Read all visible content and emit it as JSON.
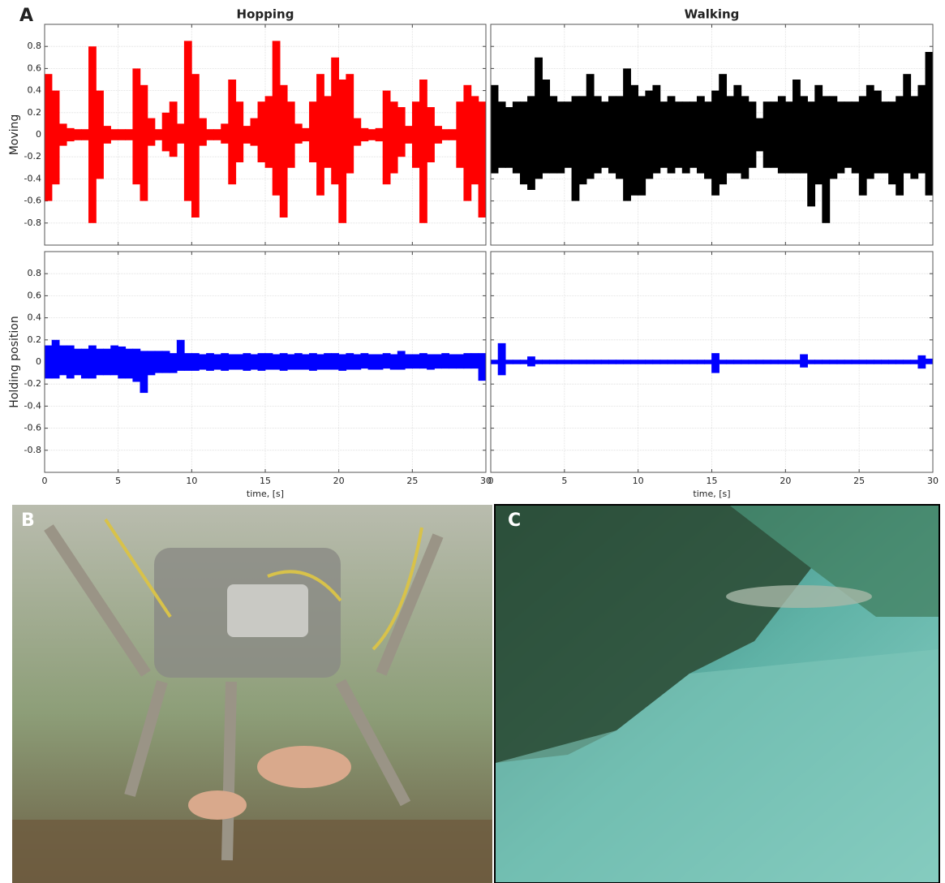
{
  "figure_labels": [
    "A",
    "B",
    "C"
  ],
  "chart_data": [
    {
      "type": "band",
      "title": "Hopping",
      "ylabel": "Moving",
      "x": [
        0.25,
        0.75,
        1.25,
        1.75,
        2.25,
        2.75,
        3.25,
        3.75,
        4.25,
        4.75,
        5.25,
        5.75,
        6.25,
        6.75,
        7.25,
        7.75,
        8.25,
        8.75,
        9.25,
        9.75,
        10.25,
        10.75,
        11.25,
        11.75,
        12.25,
        12.75,
        13.25,
        13.75,
        14.25,
        14.75,
        15.25,
        15.75,
        16.25,
        16.75,
        17.25,
        17.75,
        18.25,
        18.75,
        19.25,
        19.75,
        20.25,
        20.75,
        21.25,
        21.75,
        22.25,
        22.75,
        23.25,
        23.75,
        24.25,
        24.75,
        25.25,
        25.75,
        26.25,
        26.75,
        27.25,
        27.75,
        28.25,
        28.75,
        29.25,
        29.75
      ],
      "series": [
        {
          "color": "#ff0000",
          "values": [
            0.55,
            0.4,
            0.1,
            0.06,
            0.05,
            0.05,
            0.8,
            0.4,
            0.08,
            0.05,
            0.05,
            0.05,
            0.6,
            0.45,
            0.15,
            0.05,
            0.2,
            0.3,
            0.1,
            0.85,
            0.55,
            0.15,
            0.05,
            0.05,
            0.1,
            0.5,
            0.3,
            0.08,
            0.15,
            0.3,
            0.35,
            0.85,
            0.45,
            0.3,
            0.1,
            0.06,
            0.3,
            0.55,
            0.35,
            0.7,
            0.5,
            0.55,
            0.15,
            0.06,
            0.05,
            0.06,
            0.4,
            0.3,
            0.25,
            0.08,
            0.3,
            0.5,
            0.25,
            0.08,
            0.05,
            0.05,
            0.3,
            0.45,
            0.35,
            0.3
          ]
        },
        {
          "color": "#ff0000",
          "values": [
            -0.6,
            -0.45,
            -0.1,
            -0.06,
            -0.05,
            -0.05,
            -0.8,
            -0.4,
            -0.08,
            -0.05,
            -0.05,
            -0.05,
            -0.45,
            -0.6,
            -0.1,
            -0.05,
            -0.15,
            -0.2,
            -0.08,
            -0.6,
            -0.75,
            -0.1,
            -0.05,
            -0.05,
            -0.08,
            -0.45,
            -0.25,
            -0.08,
            -0.1,
            -0.25,
            -0.3,
            -0.55,
            -0.75,
            -0.3,
            -0.08,
            -0.06,
            -0.25,
            -0.55,
            -0.3,
            -0.45,
            -0.8,
            -0.35,
            -0.1,
            -0.06,
            -0.05,
            -0.06,
            -0.45,
            -0.35,
            -0.2,
            -0.08,
            -0.3,
            -0.8,
            -0.25,
            -0.08,
            -0.05,
            -0.05,
            -0.3,
            -0.6,
            -0.45,
            -0.75
          ]
        }
      ],
      "xlim": [
        0,
        30
      ],
      "xticks": [
        0,
        5,
        10,
        15,
        20,
        25,
        30
      ],
      "ylim": [
        -1,
        1
      ],
      "yticks": [
        -0.8,
        -0.6,
        -0.4,
        -0.2,
        0,
        0.2,
        0.4,
        0.6,
        0.8
      ],
      "grid": true,
      "show_xtick_labels": false,
      "show_ytick_labels": true
    },
    {
      "type": "band",
      "title": "Walking",
      "x": [
        0.25,
        0.75,
        1.25,
        1.75,
        2.25,
        2.75,
        3.25,
        3.75,
        4.25,
        4.75,
        5.25,
        5.75,
        6.25,
        6.75,
        7.25,
        7.75,
        8.25,
        8.75,
        9.25,
        9.75,
        10.25,
        10.75,
        11.25,
        11.75,
        12.25,
        12.75,
        13.25,
        13.75,
        14.25,
        14.75,
        15.25,
        15.75,
        16.25,
        16.75,
        17.25,
        17.75,
        18.25,
        18.75,
        19.25,
        19.75,
        20.25,
        20.75,
        21.25,
        21.75,
        22.25,
        22.75,
        23.25,
        23.75,
        24.25,
        24.75,
        25.25,
        25.75,
        26.25,
        26.75,
        27.25,
        27.75,
        28.25,
        28.75,
        29.25,
        29.75
      ],
      "series": [
        {
          "color": "#000000",
          "values": [
            0.45,
            0.3,
            0.25,
            0.3,
            0.3,
            0.35,
            0.7,
            0.5,
            0.35,
            0.3,
            0.3,
            0.35,
            0.35,
            0.55,
            0.35,
            0.3,
            0.35,
            0.35,
            0.6,
            0.45,
            0.35,
            0.4,
            0.45,
            0.3,
            0.35,
            0.3,
            0.3,
            0.3,
            0.35,
            0.3,
            0.4,
            0.55,
            0.35,
            0.45,
            0.35,
            0.3,
            0.15,
            0.3,
            0.3,
            0.35,
            0.3,
            0.5,
            0.35,
            0.3,
            0.45,
            0.35,
            0.35,
            0.3,
            0.3,
            0.3,
            0.35,
            0.45,
            0.4,
            0.3,
            0.3,
            0.35,
            0.55,
            0.35,
            0.45,
            0.75
          ]
        },
        {
          "color": "#000000",
          "values": [
            -0.35,
            -0.3,
            -0.3,
            -0.35,
            -0.45,
            -0.5,
            -0.4,
            -0.35,
            -0.35,
            -0.35,
            -0.3,
            -0.6,
            -0.45,
            -0.4,
            -0.35,
            -0.3,
            -0.35,
            -0.4,
            -0.6,
            -0.55,
            -0.55,
            -0.4,
            -0.35,
            -0.3,
            -0.35,
            -0.3,
            -0.35,
            -0.3,
            -0.35,
            -0.4,
            -0.55,
            -0.45,
            -0.35,
            -0.35,
            -0.4,
            -0.3,
            -0.15,
            -0.3,
            -0.3,
            -0.35,
            -0.35,
            -0.35,
            -0.35,
            -0.65,
            -0.45,
            -0.8,
            -0.4,
            -0.35,
            -0.3,
            -0.35,
            -0.55,
            -0.4,
            -0.35,
            -0.35,
            -0.45,
            -0.55,
            -0.35,
            -0.4,
            -0.35,
            -0.55
          ]
        }
      ],
      "xlim": [
        0,
        30
      ],
      "xticks": [
        0,
        5,
        10,
        15,
        20,
        25,
        30
      ],
      "ylim": [
        -1,
        1
      ],
      "yticks": [
        -0.8,
        -0.6,
        -0.4,
        -0.2,
        0,
        0.2,
        0.4,
        0.6,
        0.8
      ],
      "grid": true,
      "show_xtick_labels": false,
      "show_ytick_labels": false
    },
    {
      "type": "band",
      "ylabel": "Holding position",
      "xlabel": "time, [s]",
      "x": [
        0.25,
        0.75,
        1.25,
        1.75,
        2.25,
        2.75,
        3.25,
        3.75,
        4.25,
        4.75,
        5.25,
        5.75,
        6.25,
        6.75,
        7.25,
        7.75,
        8.25,
        8.75,
        9.25,
        9.75,
        10.25,
        10.75,
        11.25,
        11.75,
        12.25,
        12.75,
        13.25,
        13.75,
        14.25,
        14.75,
        15.25,
        15.75,
        16.25,
        16.75,
        17.25,
        17.75,
        18.25,
        18.75,
        19.25,
        19.75,
        20.25,
        20.75,
        21.25,
        21.75,
        22.25,
        22.75,
        23.25,
        23.75,
        24.25,
        24.75,
        25.25,
        25.75,
        26.25,
        26.75,
        27.25,
        27.75,
        28.25,
        28.75,
        29.25,
        29.75
      ],
      "series": [
        {
          "color": "#0000ff",
          "values": [
            0.15,
            0.2,
            0.15,
            0.15,
            0.12,
            0.12,
            0.15,
            0.12,
            0.12,
            0.15,
            0.14,
            0.12,
            0.12,
            0.1,
            0.1,
            0.1,
            0.1,
            0.08,
            0.2,
            0.08,
            0.08,
            0.07,
            0.08,
            0.07,
            0.08,
            0.07,
            0.07,
            0.08,
            0.07,
            0.08,
            0.08,
            0.07,
            0.08,
            0.07,
            0.08,
            0.07,
            0.08,
            0.07,
            0.08,
            0.08,
            0.07,
            0.08,
            0.07,
            0.08,
            0.07,
            0.07,
            0.08,
            0.07,
            0.1,
            0.07,
            0.07,
            0.08,
            0.07,
            0.07,
            0.08,
            0.07,
            0.07,
            0.08,
            0.08,
            0.08
          ]
        },
        {
          "color": "#0000ff",
          "values": [
            -0.15,
            -0.15,
            -0.12,
            -0.15,
            -0.12,
            -0.15,
            -0.15,
            -0.12,
            -0.12,
            -0.12,
            -0.15,
            -0.15,
            -0.18,
            -0.28,
            -0.12,
            -0.1,
            -0.1,
            -0.1,
            -0.08,
            -0.08,
            -0.08,
            -0.07,
            -0.08,
            -0.07,
            -0.08,
            -0.07,
            -0.07,
            -0.08,
            -0.07,
            -0.08,
            -0.07,
            -0.07,
            -0.08,
            -0.07,
            -0.07,
            -0.07,
            -0.08,
            -0.07,
            -0.07,
            -0.07,
            -0.08,
            -0.07,
            -0.07,
            -0.06,
            -0.07,
            -0.07,
            -0.06,
            -0.07,
            -0.07,
            -0.06,
            -0.06,
            -0.06,
            -0.07,
            -0.06,
            -0.06,
            -0.06,
            -0.06,
            -0.06,
            -0.06,
            -0.17
          ]
        }
      ],
      "xlim": [
        0,
        30
      ],
      "xticks": [
        0,
        5,
        10,
        15,
        20,
        25,
        30
      ],
      "ylim": [
        -1,
        1
      ],
      "yticks": [
        -0.8,
        -0.6,
        -0.4,
        -0.2,
        0,
        0.2,
        0.4,
        0.6,
        0.8
      ],
      "grid": true,
      "show_xtick_labels": true,
      "show_ytick_labels": true
    },
    {
      "type": "band",
      "xlabel": "time, [s]",
      "x": [
        0.25,
        0.75,
        1.25,
        1.75,
        2.25,
        2.75,
        3.25,
        3.75,
        4.25,
        4.75,
        5.25,
        5.75,
        6.25,
        6.75,
        7.25,
        7.75,
        8.25,
        8.75,
        9.25,
        9.75,
        10.25,
        10.75,
        11.25,
        11.75,
        12.25,
        12.75,
        13.25,
        13.75,
        14.25,
        14.75,
        15.25,
        15.75,
        16.25,
        16.75,
        17.25,
        17.75,
        18.25,
        18.75,
        19.25,
        19.75,
        20.25,
        20.75,
        21.25,
        21.75,
        22.25,
        22.75,
        23.25,
        23.75,
        24.25,
        24.75,
        25.25,
        25.75,
        26.25,
        26.75,
        27.25,
        27.75,
        28.25,
        28.75,
        29.25,
        29.75
      ],
      "series": [
        {
          "color": "#0000ff",
          "values": [
            0.02,
            0.17,
            0.02,
            0.02,
            0.02,
            0.05,
            0.02,
            0.02,
            0.02,
            0.02,
            0.02,
            0.02,
            0.02,
            0.02,
            0.02,
            0.02,
            0.02,
            0.02,
            0.02,
            0.02,
            0.02,
            0.02,
            0.02,
            0.02,
            0.02,
            0.02,
            0.02,
            0.02,
            0.02,
            0.02,
            0.08,
            0.02,
            0.02,
            0.02,
            0.02,
            0.02,
            0.02,
            0.02,
            0.02,
            0.02,
            0.02,
            0.02,
            0.07,
            0.02,
            0.02,
            0.02,
            0.02,
            0.02,
            0.02,
            0.02,
            0.02,
            0.02,
            0.02,
            0.02,
            0.02,
            0.02,
            0.02,
            0.02,
            0.06,
            0.03
          ]
        },
        {
          "color": "#0000ff",
          "values": [
            -0.02,
            -0.12,
            -0.02,
            -0.02,
            -0.02,
            -0.04,
            -0.02,
            -0.02,
            -0.02,
            -0.02,
            -0.02,
            -0.02,
            -0.02,
            -0.02,
            -0.02,
            -0.02,
            -0.02,
            -0.02,
            -0.02,
            -0.02,
            -0.02,
            -0.02,
            -0.02,
            -0.02,
            -0.02,
            -0.02,
            -0.02,
            -0.02,
            -0.02,
            -0.02,
            -0.1,
            -0.02,
            -0.02,
            -0.02,
            -0.02,
            -0.02,
            -0.02,
            -0.02,
            -0.02,
            -0.02,
            -0.02,
            -0.02,
            -0.05,
            -0.02,
            -0.02,
            -0.02,
            -0.02,
            -0.02,
            -0.02,
            -0.02,
            -0.02,
            -0.02,
            -0.02,
            -0.02,
            -0.02,
            -0.02,
            -0.02,
            -0.02,
            -0.06,
            -0.02
          ]
        }
      ],
      "xlim": [
        0,
        30
      ],
      "xticks": [
        0,
        5,
        10,
        15,
        20,
        25,
        30
      ],
      "ylim": [
        -1,
        1
      ],
      "yticks": [
        -0.8,
        -0.6,
        -0.4,
        -0.2,
        0,
        0.2,
        0.4,
        0.6,
        0.8
      ],
      "grid": true,
      "show_xtick_labels": true,
      "show_ytick_labels": false
    }
  ]
}
